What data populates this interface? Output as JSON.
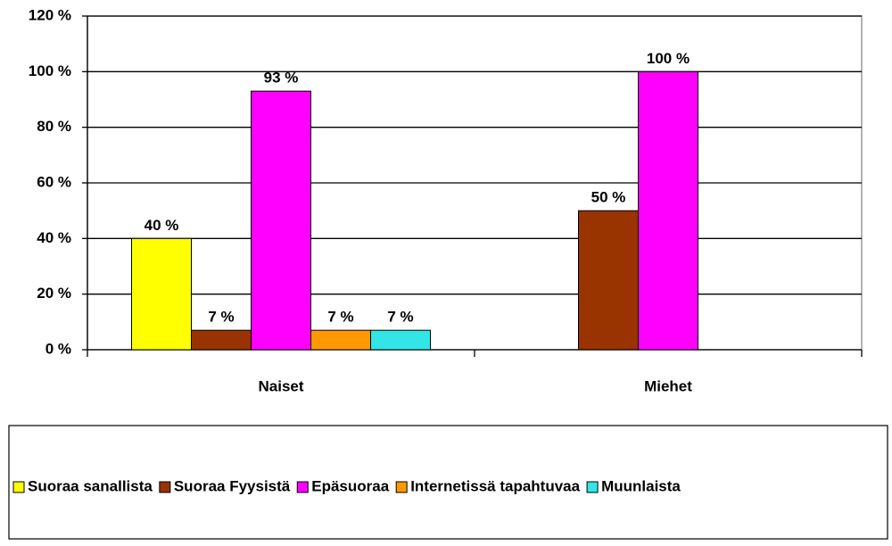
{
  "chart_data": {
    "type": "bar",
    "categories": [
      "Naiset",
      "Miehet"
    ],
    "series": [
      {
        "name": "Suoraa sanallista",
        "color": "#ffff00",
        "values": [
          40,
          null
        ],
        "value_labels": [
          "40 %",
          null
        ]
      },
      {
        "name": "Suoraa Fyysistä",
        "color": "#993300",
        "values": [
          7,
          50
        ],
        "value_labels": [
          "7 %",
          "50 %"
        ]
      },
      {
        "name": "Epäsuoraa",
        "color": "#ff00ff",
        "values": [
          93,
          100
        ],
        "value_labels": [
          "93 %",
          "100 %"
        ]
      },
      {
        "name": "Internetissä tapahtuvaa",
        "color": "#ff9900",
        "values": [
          7,
          null
        ],
        "value_labels": [
          "7 %",
          null
        ]
      },
      {
        "name": "Muunlaista",
        "color": "#33e6e6",
        "values": [
          7,
          null
        ],
        "value_labels": [
          "7 %",
          null
        ]
      }
    ],
    "ylim": [
      0,
      120
    ],
    "yticks": [
      {
        "value": 0,
        "label": "0 %"
      },
      {
        "value": 20,
        "label": "20 %"
      },
      {
        "value": 40,
        "label": "40 %"
      },
      {
        "value": 60,
        "label": "60 %"
      },
      {
        "value": 80,
        "label": "80 %"
      },
      {
        "value": 100,
        "label": "100 %"
      },
      {
        "value": 120,
        "label": "120 %"
      }
    ],
    "grid": true
  }
}
